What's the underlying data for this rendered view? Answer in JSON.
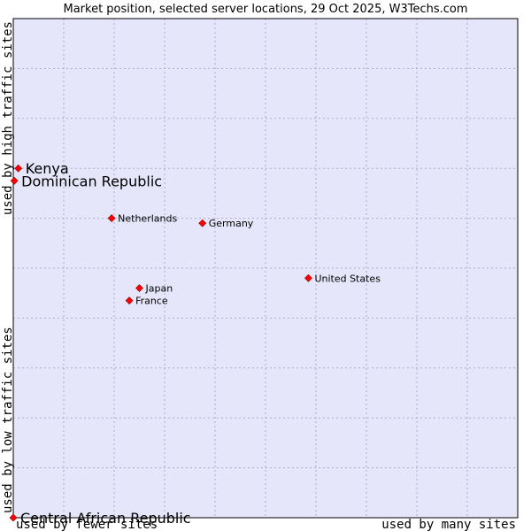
{
  "chart_data": {
    "type": "scatter",
    "title": "Market position, selected server locations, 29 Oct 2025, W3Techs.com",
    "xlabel_left": "used by fewer sites",
    "xlabel_right": "used by many sites",
    "ylabel_bottom": "used by low traffic sites",
    "ylabel_top": "used by high traffic sites",
    "xlim": [
      0,
      10
    ],
    "ylim": [
      0,
      10
    ],
    "grid": true,
    "points": [
      {
        "name": "Kenya",
        "x": 0.1,
        "y": 7.0,
        "size": "large"
      },
      {
        "name": "Dominican Republic",
        "x": 0.02,
        "y": 6.75,
        "size": "large"
      },
      {
        "name": "Netherlands",
        "x": 1.95,
        "y": 6.0,
        "size": "small"
      },
      {
        "name": "Germany",
        "x": 3.75,
        "y": 5.9,
        "size": "small"
      },
      {
        "name": "United States",
        "x": 5.85,
        "y": 4.8,
        "size": "small"
      },
      {
        "name": "Japan",
        "x": 2.5,
        "y": 4.6,
        "size": "small"
      },
      {
        "name": "France",
        "x": 2.3,
        "y": 4.35,
        "size": "small"
      },
      {
        "name": "Central African Republic",
        "x": 0.0,
        "y": 0.0,
        "size": "large"
      }
    ]
  },
  "colors": {
    "plot_bg": "#e6e6fa",
    "grid": "#aaaacc",
    "point": "#ff0000",
    "point_stroke": "#8b0000",
    "axis": "#000000"
  }
}
